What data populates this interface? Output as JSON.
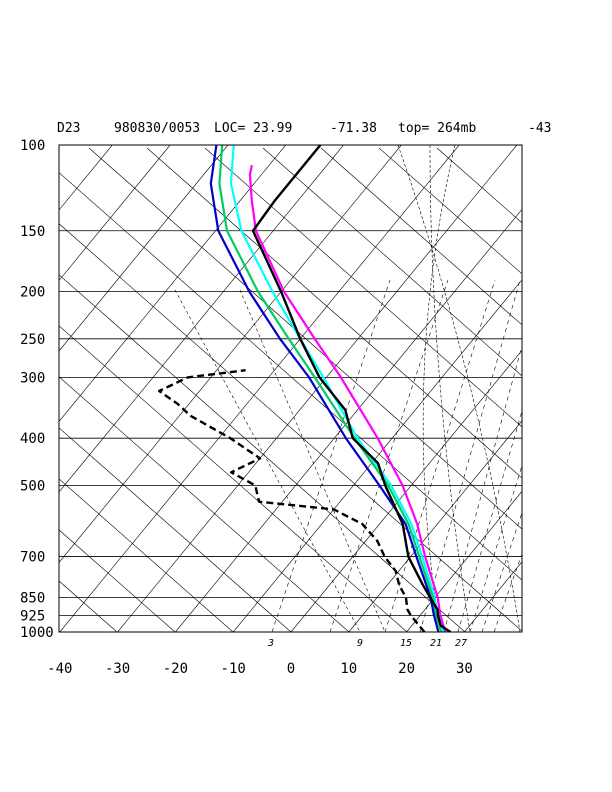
{
  "header": {
    "station": "D23",
    "datetime": "980830/0053",
    "loc_label": "LOC= 23.99",
    "lon": "-71.38",
    "top_label": "top= 264mb",
    "right_value": "-43"
  },
  "chart_data": {
    "type": "line",
    "title": "",
    "diagram": "skew-T log-P",
    "xlabel": "",
    "ylabel": "",
    "pressure_levels": [
      100,
      150,
      200,
      250,
      300,
      400,
      500,
      700,
      850,
      925,
      1000
    ],
    "pressure_labels": [
      "100",
      "150",
      "200",
      "250",
      "300",
      "400",
      "500",
      "700",
      "850",
      "925",
      "1000"
    ],
    "temperature_ticks": [
      -40,
      -30,
      -20,
      -10,
      0,
      10,
      20,
      30
    ],
    "temperature_labels": [
      "-40",
      "-30",
      "-20",
      "-10",
      "0",
      "10",
      "20",
      "30"
    ],
    "ylim_hPa": [
      1000,
      100
    ],
    "xlim_degC": [
      -40,
      40
    ],
    "y_scale": "log",
    "grid": true,
    "mixing_ratio_labels": [
      "3",
      "9",
      "15",
      "21",
      "27"
    ],
    "colors": {
      "temperature": "#000000",
      "dewpoint": "#000000",
      "parcel_magenta": "#ff00ff",
      "parcel_cyan": "#00ffff",
      "parcel_green": "#00cc66",
      "parcel_blue": "#0000cc",
      "background_lines": "#000000"
    },
    "series": [
      {
        "style": "temperature",
        "values": [
          [
            1000,
            27.6
          ],
          [
            970,
            25
          ],
          [
            925,
            23.1
          ],
          [
            900,
            22.2
          ],
          [
            850,
            19.2
          ],
          [
            800,
            16.1
          ],
          [
            700,
            9.6
          ],
          [
            600,
            4
          ],
          [
            500,
            -4.5
          ],
          [
            450,
            -8.9
          ],
          [
            400,
            -16.8
          ],
          [
            350,
            -22.1
          ],
          [
            300,
            -31.2
          ],
          [
            250,
            -40
          ],
          [
            200,
            -50
          ],
          [
            150,
            -63.5
          ],
          [
            130,
            -64
          ],
          [
            100,
            -64
          ]
        ]
      },
      {
        "style": "dewpoint",
        "values": [
          [
            1000,
            23.1
          ],
          [
            950,
            20
          ],
          [
            925,
            18.4
          ],
          [
            900,
            17
          ],
          [
            850,
            15
          ],
          [
            800,
            12
          ],
          [
            750,
            9.5
          ],
          [
            700,
            5.5
          ],
          [
            650,
            2
          ],
          [
            600,
            -3
          ],
          [
            560,
            -10
          ],
          [
            540,
            -24
          ],
          [
            500,
            -27
          ],
          [
            470,
            -33
          ],
          [
            440,
            -30
          ],
          [
            400,
            -38
          ],
          [
            360,
            -48
          ],
          [
            340,
            -52
          ],
          [
            320,
            -57
          ],
          [
            300,
            -54
          ],
          [
            290,
            -45
          ]
        ]
      },
      {
        "style": "parcel_magenta",
        "values": [
          [
            1000,
            26.7
          ],
          [
            925,
            23.5
          ],
          [
            850,
            20.5
          ],
          [
            700,
            12.5
          ],
          [
            600,
            6.5
          ],
          [
            500,
            -1.5
          ],
          [
            400,
            -12.5
          ],
          [
            300,
            -27.5
          ],
          [
            250,
            -37.5
          ],
          [
            200,
            -49.5
          ],
          [
            150,
            -63
          ],
          [
            130,
            -68
          ],
          [
            115,
            -72
          ],
          [
            110,
            -73
          ]
        ]
      },
      {
        "style": "parcel_cyan",
        "values": [
          [
            1000,
            26.3
          ],
          [
            925,
            23
          ],
          [
            850,
            20
          ],
          [
            700,
            12
          ],
          [
            600,
            5.5
          ],
          [
            500,
            -3.5
          ],
          [
            400,
            -16
          ],
          [
            300,
            -30.5
          ],
          [
            250,
            -40
          ],
          [
            200,
            -51.5
          ],
          [
            150,
            -65.5
          ],
          [
            120,
            -74
          ],
          [
            100,
            -79
          ]
        ]
      },
      {
        "style": "parcel_green",
        "values": [
          [
            1000,
            26
          ],
          [
            925,
            22.7
          ],
          [
            850,
            19.7
          ],
          [
            700,
            11.5
          ],
          [
            600,
            5
          ],
          [
            500,
            -4
          ],
          [
            400,
            -16.5
          ],
          [
            300,
            -32
          ],
          [
            250,
            -42
          ],
          [
            200,
            -54
          ],
          [
            150,
            -68
          ],
          [
            120,
            -76
          ],
          [
            100,
            -81
          ]
        ]
      },
      {
        "style": "parcel_blue",
        "values": [
          [
            1000,
            25.5
          ],
          [
            925,
            22.4
          ],
          [
            850,
            19.3
          ],
          [
            700,
            11
          ],
          [
            600,
            4.5
          ],
          [
            500,
            -5.5
          ],
          [
            400,
            -18
          ],
          [
            300,
            -33
          ],
          [
            250,
            -43.5
          ],
          [
            200,
            -55.5
          ],
          [
            150,
            -69.5
          ],
          [
            120,
            -77.5
          ],
          [
            100,
            -82
          ]
        ]
      }
    ]
  }
}
